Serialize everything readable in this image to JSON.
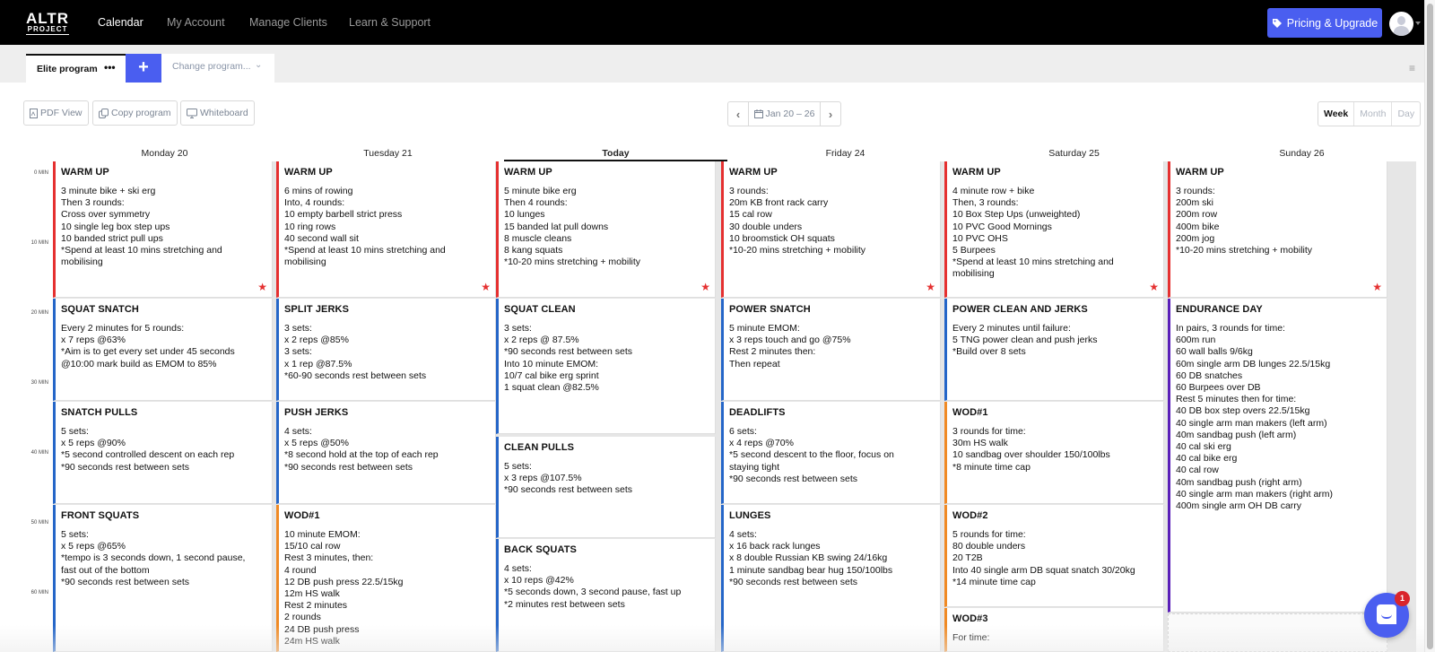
{
  "nav": {
    "logo_line1": "ALTR",
    "logo_line2": "PROJECT",
    "items": [
      {
        "label": "Calendar",
        "active": true
      },
      {
        "label": "My Account",
        "active": false
      },
      {
        "label": "Manage Clients",
        "active": false
      },
      {
        "label": "Learn & Support",
        "active": false
      }
    ],
    "pricing_label": "Pricing & Upgrade",
    "accent_color": "#4a5ef0"
  },
  "tabs": {
    "program_label": "Elite program",
    "program_menu": "•••",
    "add_label": "+",
    "change_label": "Change program...",
    "change_chevron": "⌄",
    "menu_icon": "≡"
  },
  "toolbar": {
    "pdf_label": "PDF View",
    "copy_label": "Copy program",
    "whiteboard_label": "Whiteboard",
    "prev": "‹",
    "next": "›",
    "date_range": "Jan 20 – 26",
    "views": [
      "Week",
      "Month",
      "Day"
    ],
    "active_view": "Week"
  },
  "days": [
    {
      "label": "Monday 20",
      "today": false
    },
    {
      "label": "Tuesday 21",
      "today": false
    },
    {
      "label": "Today",
      "today": true
    },
    {
      "label": "Friday 24",
      "today": false
    },
    {
      "label": "Saturday 25",
      "today": false
    },
    {
      "label": "Sunday 26",
      "today": false
    }
  ],
  "time_labels": [
    "0 MIN",
    "10 MIN",
    "20 MIN",
    "30 MIN",
    "40 MIN",
    "50 MIN",
    "60 MIN"
  ],
  "workouts": [
    [
      {
        "title": "WARM UP",
        "color": "red",
        "starred": true,
        "lines": [
          "3 minute bike + ski erg",
          "Then 3 rounds:",
          "Cross over symmetry",
          "10 single leg box step ups",
          "10 banded strict pull ups",
          "*Spend at least 10 mins stretching and",
          "mobilising"
        ]
      },
      {
        "title": "SQUAT SNATCH",
        "color": "blue",
        "starred": false,
        "lines": [
          "Every 2 minutes for 5 rounds:",
          "x 7 reps @63%",
          "*Aim is to get every set under 45 seconds",
          "@10:00 mark build as EMOM to 85%"
        ]
      },
      {
        "title": "SNATCH PULLS",
        "color": "blue",
        "starred": false,
        "lines": [
          "5 sets:",
          "x 5 reps @90%",
          "*5 second controlled descent on each rep",
          "*90 seconds rest between sets"
        ]
      },
      {
        "title": "FRONT SQUATS",
        "color": "blue",
        "starred": false,
        "lines": [
          "5 sets:",
          "x 5 reps @65%",
          "*tempo is 3 seconds down, 1 second pause,",
          "fast out of the bottom",
          "*90 seconds rest between sets"
        ]
      }
    ],
    [
      {
        "title": "WARM UP",
        "color": "red",
        "starred": true,
        "lines": [
          "6 mins of rowing",
          "Into, 4 rounds:",
          "10 empty barbell strict press",
          "10 ring rows",
          "40 second wall sit",
          "*Spend at least 10 mins stretching and",
          "mobilising"
        ]
      },
      {
        "title": "SPLIT JERKS",
        "color": "blue",
        "starred": false,
        "lines": [
          "3 sets:",
          "x 2 reps @85%",
          "3 sets:",
          "x 1 rep @87.5%",
          "*60-90 seconds rest between sets"
        ]
      },
      {
        "title": "PUSH JERKS",
        "color": "blue",
        "starred": false,
        "lines": [
          "4 sets:",
          "x 5 reps @50%",
          "*8 second hold at the top of each rep",
          "*90 seconds rest between sets"
        ]
      },
      {
        "title": "WOD#1",
        "color": "orange",
        "starred": false,
        "lines": [
          "10 minute EMOM:",
          "15/10 cal row",
          "Rest 3 minutes, then:",
          "4 round",
          "12 DB push press 22.5/15kg",
          "12m HS walk",
          "Rest 2 minutes",
          "2 rounds",
          "24 DB push press",
          "24m HS walk"
        ]
      }
    ],
    [
      {
        "title": "WARM UP",
        "color": "red",
        "starred": true,
        "lines": [
          "5 minute bike erg",
          "Then 4 rounds:",
          "10 lunges",
          "15 banded lat pull downs",
          "8 muscle cleans",
          "8 kang squats",
          "*10-20 mins stretching + mobility"
        ]
      },
      {
        "title": "SQUAT CLEAN",
        "color": "blue",
        "starred": false,
        "lines": [
          "3 sets:",
          "x 2 reps @ 87.5%",
          "*90 seconds rest between sets",
          "Into 10 minute EMOM:",
          "10/7 cal bike erg sprint",
          "1 squat clean @82.5%"
        ]
      },
      {
        "title": "CLEAN PULLS",
        "color": "blue",
        "starred": false,
        "lines": [
          "5 sets:",
          "x 3 reps @107.5%",
          "*90 seconds rest between sets"
        ]
      },
      {
        "title": "BACK SQUATS",
        "color": "blue",
        "starred": false,
        "lines": [
          "4 sets:",
          "x 10 reps @42%",
          "*5 seconds down, 3 second pause, fast up",
          "*2 minutes rest between sets"
        ]
      }
    ],
    [
      {
        "title": "WARM UP",
        "color": "red",
        "starred": true,
        "lines": [
          "3 rounds:",
          "20m KB front rack carry",
          "15 cal row",
          "30 double unders",
          "10 broomstick OH squats",
          "*10-20 mins stretching + mobility"
        ]
      },
      {
        "title": "POWER SNATCH",
        "color": "blue",
        "starred": false,
        "lines": [
          "5 minute EMOM:",
          "x 3 reps touch and go @75%",
          "Rest 2 minutes then:",
          "Then repeat"
        ]
      },
      {
        "title": "DEADLIFTS",
        "color": "blue",
        "starred": false,
        "lines": [
          "6 sets:",
          "x 4 reps @70%",
          "*5 second descent to the floor, focus on",
          "staying tight",
          "*90 seconds rest between sets"
        ]
      },
      {
        "title": "LUNGES",
        "color": "blue",
        "starred": false,
        "lines": [
          "4 sets:",
          "x 16 back rack lunges",
          "x 8 double Russian KB swing 24/16kg",
          "1 minute sandbag bear hug 150/100lbs",
          "*90 seconds rest between sets"
        ]
      }
    ],
    [
      {
        "title": "WARM UP",
        "color": "red",
        "starred": true,
        "lines": [
          "4 minute row + bike",
          "Then, 3 rounds:",
          "10 Box Step Ups (unweighted)",
          "10 PVC Good Mornings",
          "10 PVC OHS",
          "5 Burpees",
          "*Spend at least 10 mins stretching and",
          "mobilising"
        ]
      },
      {
        "title": "POWER CLEAN AND JERKS",
        "color": "blue",
        "starred": false,
        "lines": [
          "Every 2 minutes until failure:",
          "5 TNG power clean and push jerks",
          "*Build over 8 sets"
        ]
      },
      {
        "title": "WOD#1",
        "color": "orange",
        "starred": false,
        "lines": [
          "3 rounds for time:",
          "30m HS walk",
          "10 sandbag over shoulder 150/100lbs",
          "*8 minute time cap"
        ]
      },
      {
        "title": "WOD#2",
        "color": "orange",
        "starred": false,
        "lines": [
          "5 rounds for time:",
          "80 double unders",
          "20 T2B",
          "Into 40 single arm DB squat snatch 30/20kg",
          "*14 minute time cap"
        ]
      },
      {
        "title": "WOD#3",
        "color": "orange",
        "starred": false,
        "lines": [
          "For time:"
        ]
      }
    ],
    [
      {
        "title": "WARM UP",
        "color": "red",
        "starred": true,
        "lines": [
          "3 rounds:",
          "200m ski",
          "200m row",
          "400m bike",
          "200m jog",
          "*10-20 mins stretching + mobility"
        ]
      },
      {
        "title": "ENDURANCE DAY",
        "color": "purple",
        "starred": false,
        "lines": [
          "In pairs, 3 rounds for time:",
          "600m run",
          "60 wall balls 9/6kg",
          "60m single arm DB lunges 22.5/15kg",
          "60 DB snatches",
          "60 Burpees over DB",
          "Rest 5 minutes then for time:",
          "40 DB box step overs 22.5/15kg",
          "40 single arm man makers (left arm)",
          "40m sandbag push (left arm)",
          "40 cal ski erg",
          "40 cal bike erg",
          "40 cal row",
          "40m sandbag push (right arm)",
          "40 single arm man makers (right arm)",
          "400m single arm OH DB carry"
        ]
      }
    ]
  ],
  "chat": {
    "badge_count": "1"
  },
  "colors": {
    "red": "#e53030",
    "blue": "#2566c8",
    "orange": "#f08a24",
    "purple": "#5a1fb8"
  }
}
